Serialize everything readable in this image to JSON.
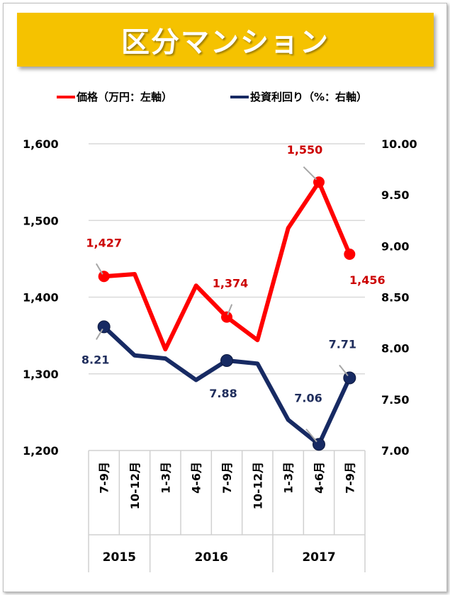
{
  "title": "区分マンション",
  "colors": {
    "title_bg": "#f5c200",
    "price": "#ff0000",
    "price_label": "#cc0000",
    "yield": "#172a63",
    "yield_label": "#1f2d5c",
    "grid": "#d9d9d9"
  },
  "chart_data": {
    "type": "line",
    "legend": [
      {
        "name": "価格（万円：左軸）",
        "color": "#ff0000"
      },
      {
        "name": "投資利回り（%：右軸）",
        "color": "#172a63"
      }
    ],
    "legend_position": "top",
    "categories": [
      "7-9月",
      "10-12月",
      "1-3月",
      "4-6月",
      "7-9月",
      "10-12月",
      "1-3月",
      "4-6月",
      "7-9月"
    ],
    "year_groups": [
      {
        "label": "2015",
        "start": 0,
        "end": 1
      },
      {
        "label": "2016",
        "start": 2,
        "end": 5
      },
      {
        "label": "2017",
        "start": 6,
        "end": 8
      }
    ],
    "series": [
      {
        "name": "価格（万円：左軸）",
        "axis": "left",
        "values": [
          1427,
          1430,
          1332,
          1415,
          1374,
          1344,
          1490,
          1550,
          1456
        ],
        "marker_indices": [
          0,
          4,
          7,
          8
        ],
        "data_labels": [
          {
            "index": 0,
            "text": "1,427"
          },
          {
            "index": 4,
            "text": "1,374"
          },
          {
            "index": 7,
            "text": "1,550"
          },
          {
            "index": 8,
            "text": "1,456"
          }
        ]
      },
      {
        "name": "投資利回り（%：右軸）",
        "axis": "right",
        "values": [
          8.21,
          7.93,
          7.9,
          7.69,
          7.88,
          7.85,
          7.3,
          7.06,
          7.71
        ],
        "marker_indices": [
          0,
          4,
          7,
          8
        ],
        "data_labels": [
          {
            "index": 0,
            "text": "8.21"
          },
          {
            "index": 4,
            "text": "7.88"
          },
          {
            "index": 7,
            "text": "7.06"
          },
          {
            "index": 8,
            "text": "7.71"
          }
        ]
      }
    ],
    "y_left": {
      "min": 1200,
      "max": 1600,
      "ticks": [
        "1,200",
        "1,300",
        "1,400",
        "1,500",
        "1,600"
      ]
    },
    "y_right": {
      "min": 7.0,
      "max": 10.0,
      "ticks": [
        "7.00",
        "7.50",
        "8.00",
        "8.50",
        "9.00",
        "9.50",
        "10.00"
      ]
    },
    "grid": true
  }
}
